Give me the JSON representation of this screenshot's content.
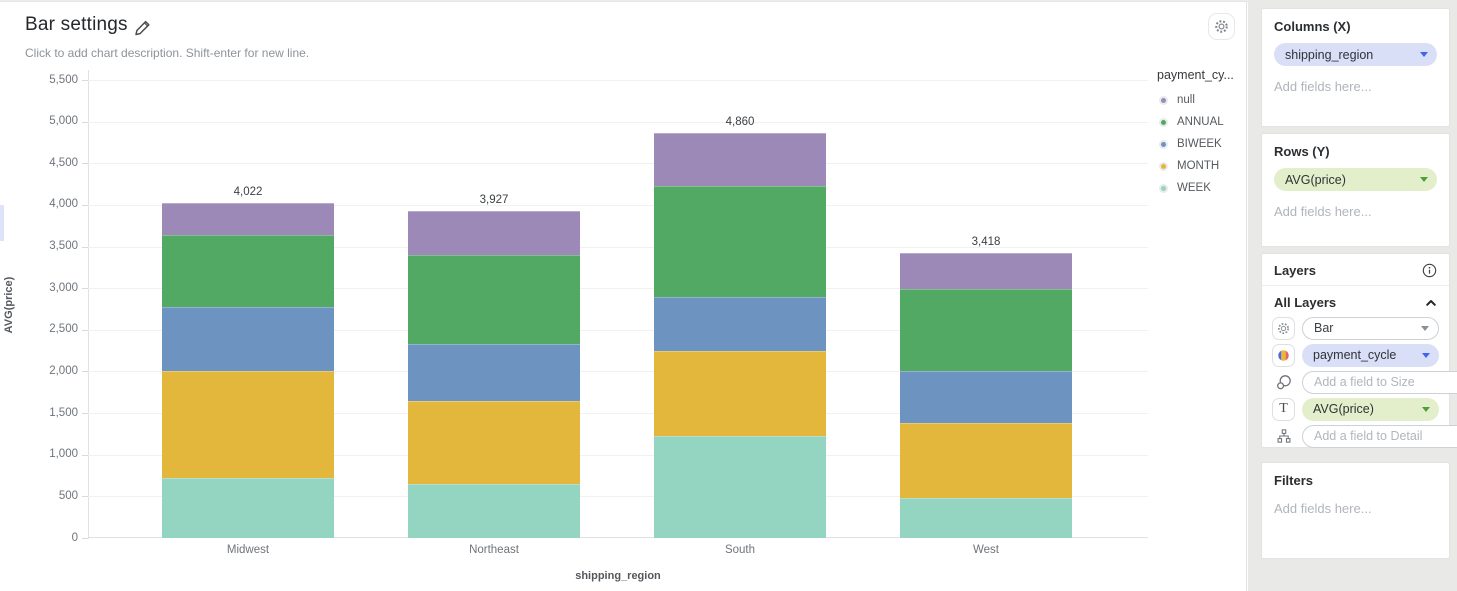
{
  "header": {
    "title": "Bar settings",
    "subtitle": "Click to add chart description. Shift-enter for new line."
  },
  "chart_data": {
    "type": "bar",
    "stacked": true,
    "title": "",
    "xlabel": "shipping_region",
    "ylabel": "AVG(price)",
    "ylim": [
      0,
      5500
    ],
    "ytick_step": 500,
    "grid": true,
    "legend_position": "right",
    "legend_title": "payment_cy...",
    "categories": [
      "Midwest",
      "Northeast",
      "South",
      "West"
    ],
    "series": [
      {
        "name": "WEEK",
        "color": "#93d5c1",
        "values": [
          725,
          653,
          1221,
          484
        ]
      },
      {
        "name": "MONTH",
        "color": "#e3b63c",
        "values": [
          1282,
          991,
          1028,
          894
        ]
      },
      {
        "name": "BIWEEK",
        "color": "#6d93c1",
        "values": [
          773,
          689,
          640,
          629
        ]
      },
      {
        "name": "ANNUAL",
        "color": "#51a963",
        "values": [
          859,
          1064,
          1342,
          983
        ]
      },
      {
        "name": "null",
        "color": "#9c89b8",
        "values": [
          383,
          530,
          629,
          428
        ]
      }
    ],
    "legend_order": [
      "null",
      "ANNUAL",
      "BIWEEK",
      "MONTH",
      "WEEK"
    ],
    "bar_total_labels": [
      "4,022",
      "3,927",
      "4,860",
      "3,418"
    ]
  },
  "sidebar": {
    "columns": {
      "header": "Columns (X)",
      "field": "shipping_region",
      "placeholder": "Add fields here..."
    },
    "rows": {
      "header": "Rows (Y)",
      "field": "AVG(price)",
      "placeholder": "Add fields here..."
    },
    "layers": {
      "header": "Layers",
      "all_layers": "All Layers",
      "mark_type": "Bar",
      "color_field": "payment_cycle",
      "size_placeholder": "Add a field to Size",
      "text_field": "AVG(price)",
      "detail_placeholder": "Add a field to Detail"
    },
    "filters": {
      "header": "Filters",
      "placeholder": "Add fields here..."
    }
  }
}
